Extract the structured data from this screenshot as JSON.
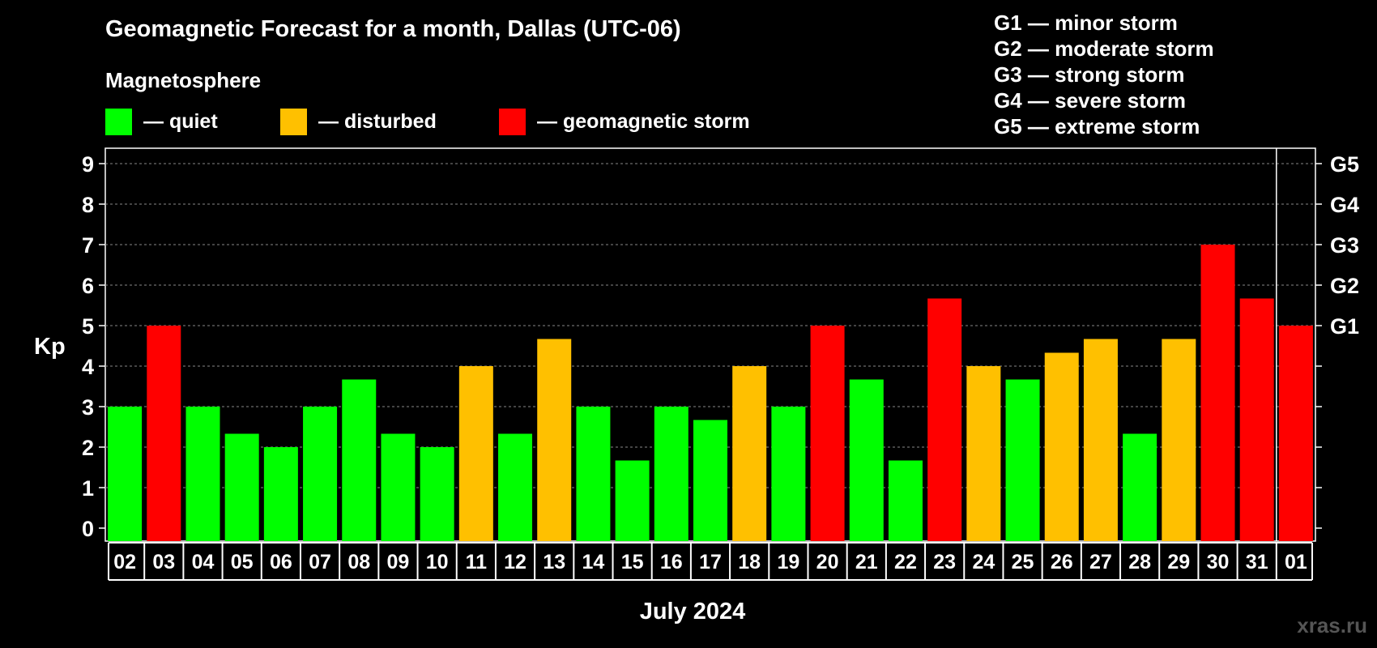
{
  "chart_data": {
    "type": "bar",
    "title": "Geomagnetic Forecast for a month, Dallas (UTC-06)",
    "xlabel": "July 2024",
    "ylabel": "Kp",
    "ylim": [
      0,
      9
    ],
    "yticks": [
      "0",
      "1",
      "2",
      "3",
      "4",
      "5",
      "6",
      "7",
      "8",
      "9"
    ],
    "categories": [
      "02",
      "03",
      "04",
      "05",
      "06",
      "07",
      "08",
      "09",
      "10",
      "11",
      "12",
      "13",
      "14",
      "15",
      "16",
      "17",
      "18",
      "19",
      "20",
      "21",
      "22",
      "23",
      "24",
      "25",
      "26",
      "27",
      "28",
      "29",
      "30",
      "31",
      "01"
    ],
    "values": [
      3,
      5,
      3,
      2.33,
      2,
      3,
      3.67,
      2.33,
      2,
      4,
      2.33,
      4.67,
      3,
      1.67,
      3,
      2.67,
      4,
      3,
      5,
      3.67,
      1.67,
      5.67,
      4,
      3.67,
      4.33,
      4.67,
      2.33,
      4.67,
      7,
      5.67,
      5
    ],
    "levels": [
      "quiet",
      "storm",
      "quiet",
      "quiet",
      "quiet",
      "quiet",
      "quiet",
      "quiet",
      "quiet",
      "disturbed",
      "quiet",
      "disturbed",
      "quiet",
      "quiet",
      "quiet",
      "quiet",
      "disturbed",
      "quiet",
      "storm",
      "quiet",
      "quiet",
      "storm",
      "disturbed",
      "quiet",
      "disturbed",
      "disturbed",
      "quiet",
      "disturbed",
      "storm",
      "storm",
      "storm"
    ],
    "g_scale_labels": [
      {
        "label": "G1",
        "kp": 5
      },
      {
        "label": "G2",
        "kp": 6
      },
      {
        "label": "G3",
        "kp": 7
      },
      {
        "label": "G4",
        "kp": 8
      },
      {
        "label": "G5",
        "kp": 9
      }
    ],
    "grid": true,
    "month_divider_before_index": 30
  },
  "legend": {
    "heading": "Magnetosphere",
    "items": [
      {
        "key": "quiet",
        "label": "— quiet",
        "color": "#00ff00"
      },
      {
        "key": "disturbed",
        "label": "— disturbed",
        "color": "#ffc000"
      },
      {
        "key": "storm",
        "label": "— geomagnetic storm",
        "color": "#ff0000"
      }
    ]
  },
  "g_legend": [
    "G1 — minor storm",
    "G2 — moderate storm",
    "G3 — strong storm",
    "G4 — severe storm",
    "G5 — extreme storm"
  ],
  "watermark": "xras.ru"
}
